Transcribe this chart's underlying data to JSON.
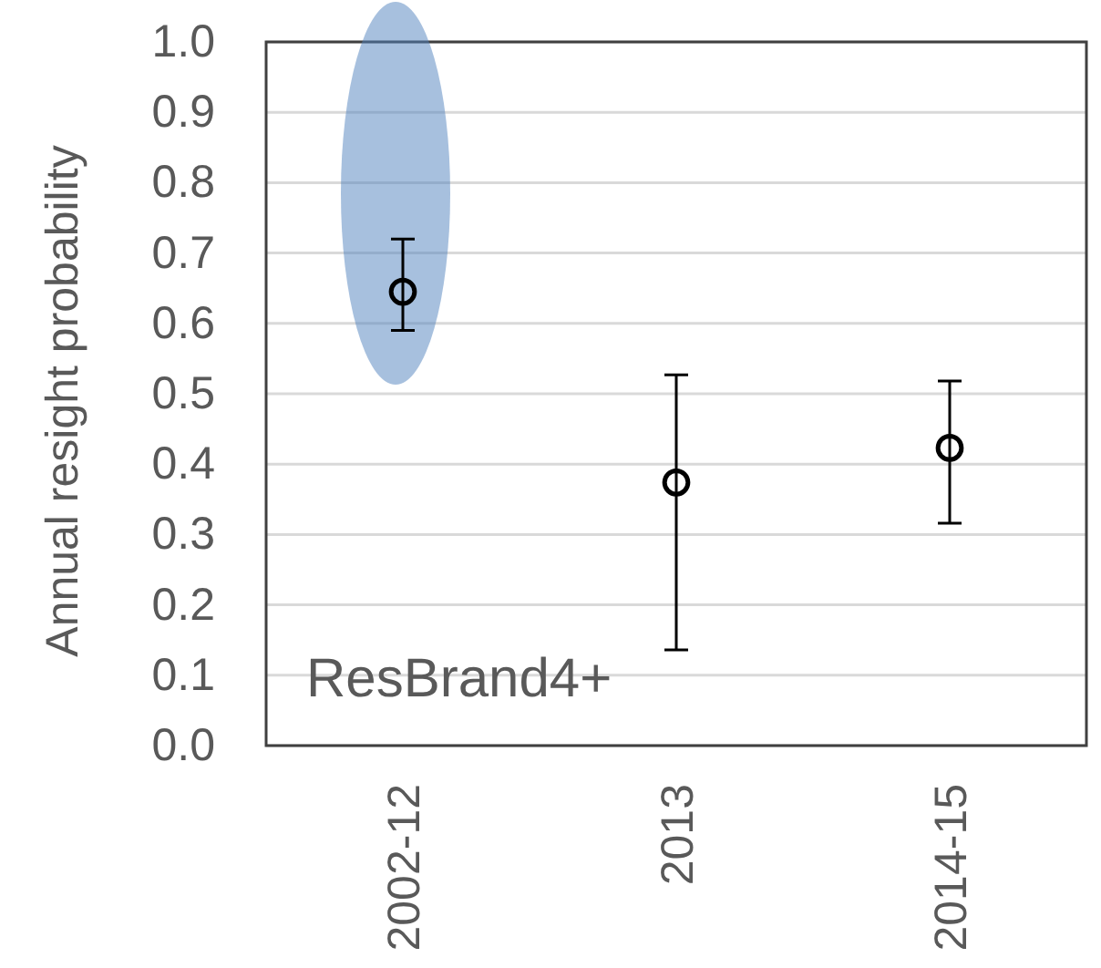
{
  "chart_data": {
    "type": "scatter",
    "ylabel": "Annual resight probability",
    "categories": [
      "2002-12",
      "2013",
      "2014-15"
    ],
    "values": [
      0.645,
      0.374,
      0.423
    ],
    "errors": [
      [
        0.59,
        0.72
      ],
      [
        0.136,
        0.527
      ],
      [
        0.316,
        0.518
      ]
    ],
    "color": "#000000",
    "marker": "circle",
    "ylim": [
      0,
      1
    ],
    "yticks": [
      {
        "value": 0,
        "label": "0.0"
      },
      0.1,
      0.2,
      0.3,
      0.4,
      0.5,
      0.6,
      0.7,
      0.8,
      0.9,
      {
        "value": 1,
        "label": "1.0"
      }
    ],
    "grid": "y",
    "annotations": [
      "ResBrand4+"
    ]
  }
}
